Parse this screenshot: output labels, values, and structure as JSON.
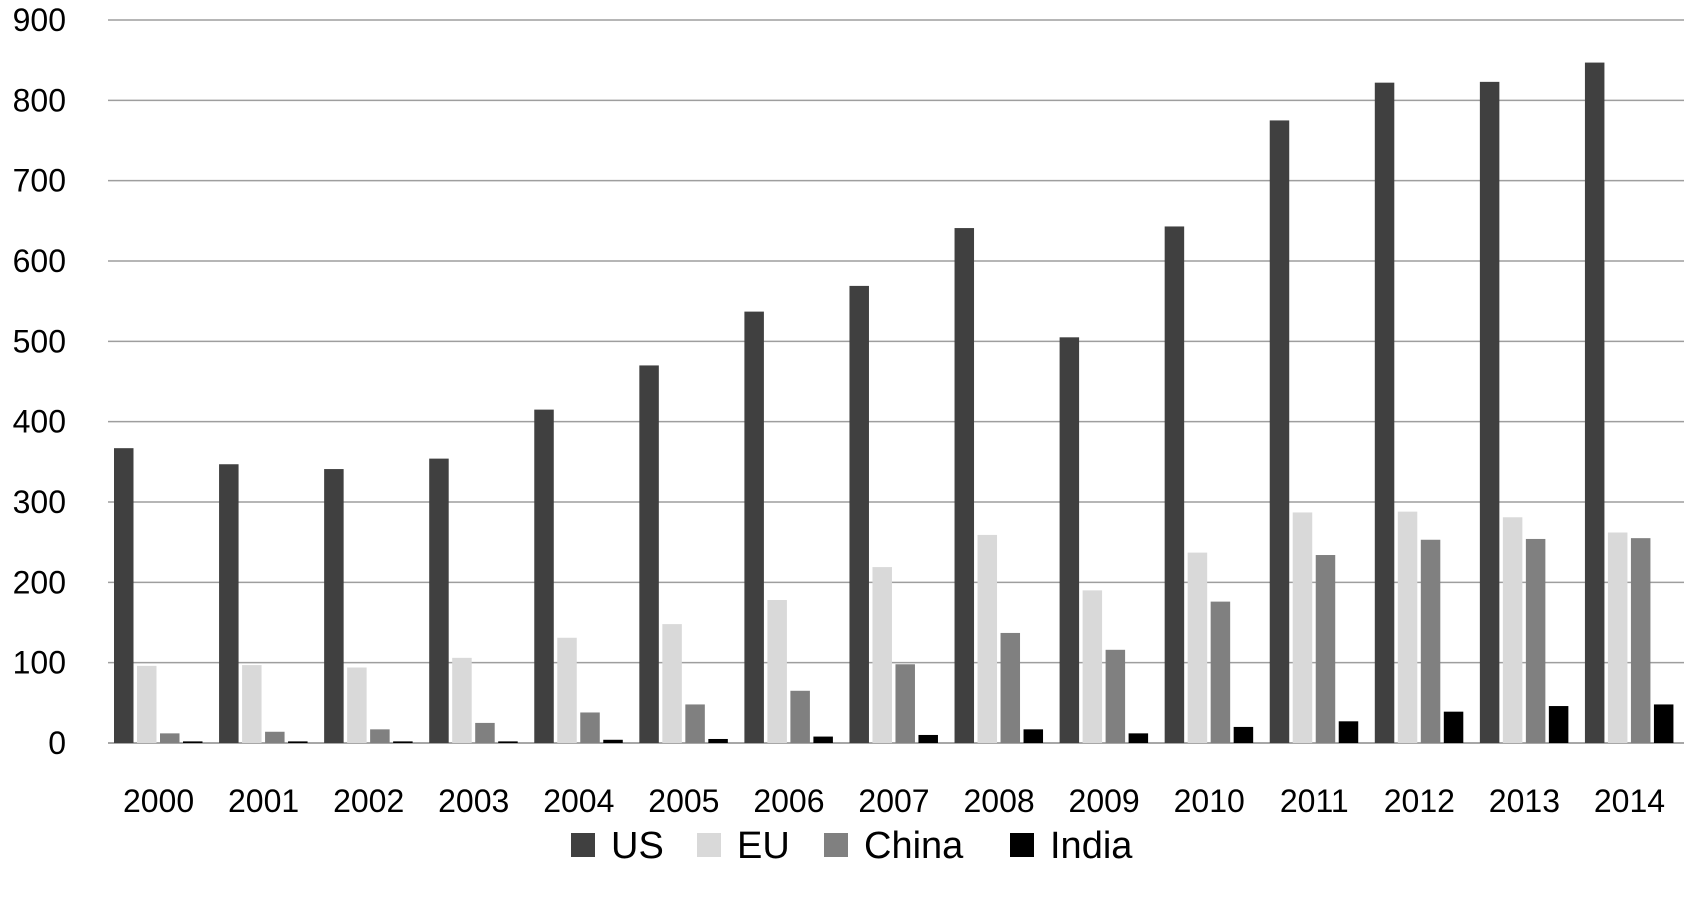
{
  "chart_data": {
    "type": "bar",
    "title": "",
    "xlabel": "",
    "ylabel": "",
    "ylim": [
      0,
      900
    ],
    "yticks": [
      0,
      100,
      200,
      300,
      400,
      500,
      600,
      700,
      800,
      900
    ],
    "grid": true,
    "legend_position": "bottom",
    "categories": [
      "2000",
      "2001",
      "2002",
      "2003",
      "2004",
      "2005",
      "2006",
      "2007",
      "2008",
      "2009",
      "2010",
      "2011",
      "2012",
      "2013",
      "2014"
    ],
    "series": [
      {
        "name": "US",
        "color": "#404040",
        "values": [
          367,
          347,
          341,
          354,
          415,
          470,
          537,
          569,
          641,
          505,
          643,
          775,
          822,
          823,
          847
        ]
      },
      {
        "name": "EU",
        "color": "#d9d9d9",
        "values": [
          96,
          97,
          94,
          106,
          131,
          148,
          178,
          219,
          259,
          190,
          237,
          287,
          288,
          281,
          262
        ]
      },
      {
        "name": "China",
        "color": "#808080",
        "values": [
          12,
          14,
          17,
          25,
          38,
          48,
          65,
          98,
          137,
          116,
          176,
          234,
          253,
          254,
          255
        ]
      },
      {
        "name": "India",
        "color": "#000000",
        "values": [
          2,
          2,
          2,
          2,
          4,
          5,
          8,
          10,
          17,
          12,
          20,
          27,
          39,
          46,
          48
        ]
      }
    ]
  }
}
